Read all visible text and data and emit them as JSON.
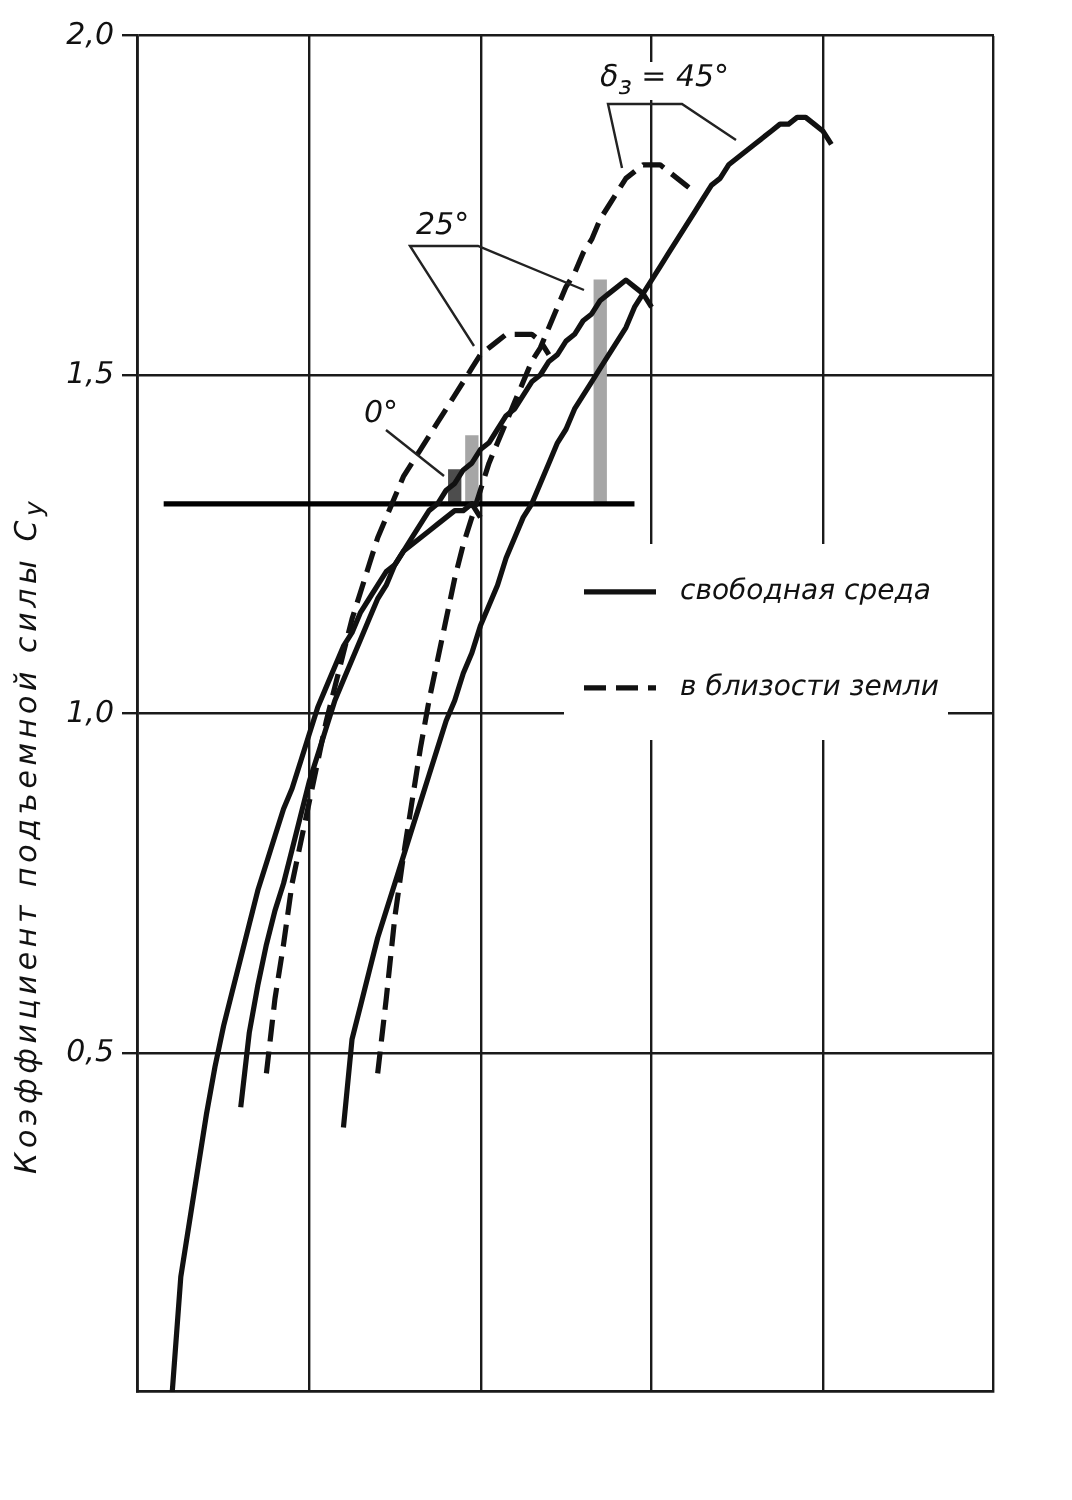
{
  "chart_data": {
    "type": "line",
    "ylabel": "Коэффициент подъемной силы C$_{y}$",
    "annotations": [
      "0°",
      "25°",
      "δ$_{з}$ = 45°"
    ],
    "categories": [
      null,
      null,
      null,
      null,
      null,
      null,
      null,
      null,
      null,
      null,
      null,
      null,
      null,
      null,
      null,
      null,
      null,
      null,
      null,
      null,
      null,
      null,
      null,
      null,
      null,
      null,
      null,
      null,
      null,
      null,
      null,
      null,
      null,
      null,
      null,
      null,
      null,
      null,
      null,
      null,
      null,
      null,
      null,
      null,
      null,
      null,
      null,
      null,
      null,
      null,
      null,
      null,
      null,
      null,
      null,
      null,
      null,
      null,
      null,
      null,
      null,
      null,
      null,
      null,
      null,
      null,
      null,
      null,
      null,
      null,
      null,
      null,
      null,
      null,
      null,
      null,
      null,
      null,
      null,
      null,
      null,
      null,
      null,
      null,
      null,
      null,
      null,
      null,
      null,
      null,
      null,
      null,
      null,
      null,
      null,
      null,
      null,
      null,
      null,
      null,
      null
    ],
    "ylim": [
      0,
      2
    ],
    "yticks": [
      {
        "value": 0.5,
        "label": "0,5"
      },
      {
        "value": 1,
        "label": "1,0"
      },
      {
        "value": 1.5,
        "label": "1,5"
      },
      {
        "value": 2,
        "label": "2,0"
      }
    ],
    "grid": true,
    "legend": "right",
    "tick_labels": "y",
    "marker": "none",
    "series": [
      {
        "name": "свободная среда",
        "color": "#111111",
        "line_style": "solid",
        "values": [
          null,
          null,
          null,
          null,
          0.0,
          0.17,
          0.25,
          0.33,
          0.41,
          0.48,
          0.54,
          0.59,
          0.64,
          0.69,
          0.74,
          0.78,
          0.82,
          0.86,
          0.89,
          0.93,
          0.97,
          1.01,
          1.04,
          1.07,
          1.1,
          1.12,
          1.15,
          1.17,
          1.19,
          1.21,
          1.22,
          1.24,
          1.25,
          1.26,
          1.27,
          1.28,
          1.29,
          1.3,
          1.3,
          1.31,
          1.29,
          null,
          null,
          null,
          null,
          null,
          null,
          null,
          null,
          null,
          null,
          null,
          null,
          null,
          null,
          null,
          null,
          null,
          null,
          null,
          null,
          null,
          null,
          null,
          null,
          null,
          null,
          null,
          null,
          null,
          null,
          null,
          null,
          null,
          null,
          null,
          null,
          null,
          null,
          null,
          null,
          null,
          null,
          null,
          null,
          null,
          null,
          null,
          null,
          null,
          null,
          null,
          null,
          null,
          null,
          null,
          null,
          null,
          null,
          null,
          null
        ]
      },
      {
        "color": "#111111",
        "line_style": "solid",
        "values": [
          null,
          null,
          null,
          null,
          null,
          null,
          null,
          null,
          null,
          null,
          null,
          null,
          0.42,
          0.53,
          0.6,
          0.66,
          0.71,
          0.75,
          0.8,
          0.85,
          0.9,
          0.94,
          0.98,
          1.02,
          1.05,
          1.08,
          1.11,
          1.14,
          1.17,
          1.19,
          1.22,
          1.24,
          1.26,
          1.28,
          1.3,
          1.31,
          1.33,
          1.34,
          1.36,
          1.37,
          1.39,
          1.4,
          1.42,
          1.44,
          1.45,
          1.47,
          1.49,
          1.5,
          1.52,
          1.53,
          1.55,
          1.56,
          1.58,
          1.59,
          1.61,
          1.62,
          1.63,
          1.64,
          1.63,
          1.62,
          1.6,
          null,
          null,
          null,
          null,
          null,
          null,
          null,
          null,
          null,
          null,
          null,
          null,
          null,
          null,
          null,
          null,
          null,
          null,
          null,
          null,
          null,
          null,
          null,
          null,
          null,
          null,
          null,
          null,
          null,
          null,
          null,
          null,
          null,
          null,
          null,
          null,
          null,
          null,
          null,
          null
        ]
      },
      {
        "name": "в близости земли",
        "color": "#111111",
        "line_style": "dashed",
        "values": [
          null,
          null,
          null,
          null,
          null,
          null,
          null,
          null,
          null,
          null,
          null,
          null,
          null,
          null,
          null,
          0.47,
          0.58,
          0.66,
          0.75,
          0.81,
          0.87,
          0.93,
          0.99,
          1.04,
          1.09,
          1.14,
          1.18,
          1.22,
          1.26,
          1.29,
          1.32,
          1.35,
          1.37,
          1.39,
          1.41,
          1.43,
          1.45,
          1.47,
          1.49,
          1.51,
          1.53,
          1.54,
          1.55,
          1.56,
          1.56,
          1.56,
          1.56,
          1.55,
          1.53,
          null,
          null,
          null,
          null,
          null,
          null,
          null,
          null,
          null,
          null,
          null,
          null,
          null,
          null,
          null,
          null,
          null,
          null,
          null,
          null,
          null,
          null,
          null,
          null,
          null,
          null,
          null,
          null,
          null,
          null,
          null,
          null,
          null,
          null,
          null,
          null,
          null,
          null,
          null,
          null,
          null,
          null,
          null,
          null,
          null,
          null,
          null,
          null,
          null,
          null,
          null,
          null
        ]
      },
      {
        "color": "#111111",
        "line_style": "solid",
        "values": [
          null,
          null,
          null,
          null,
          null,
          null,
          null,
          null,
          null,
          null,
          null,
          null,
          null,
          null,
          null,
          null,
          null,
          null,
          null,
          null,
          null,
          null,
          null,
          null,
          0.39,
          0.52,
          0.57,
          0.62,
          0.67,
          0.71,
          0.75,
          0.79,
          0.83,
          0.87,
          0.91,
          0.95,
          0.99,
          1.02,
          1.06,
          1.09,
          1.13,
          1.16,
          1.19,
          1.23,
          1.26,
          1.29,
          1.31,
          1.34,
          1.37,
          1.4,
          1.42,
          1.45,
          1.47,
          1.49,
          1.51,
          1.53,
          1.55,
          1.57,
          1.6,
          1.62,
          1.64,
          1.66,
          1.68,
          1.7,
          1.72,
          1.74,
          1.76,
          1.78,
          1.79,
          1.81,
          1.82,
          1.83,
          1.84,
          1.85,
          1.86,
          1.87,
          1.87,
          1.88,
          1.88,
          1.87,
          1.86,
          1.84,
          null,
          null,
          null,
          null,
          null,
          null,
          null,
          null,
          null,
          null,
          null,
          null,
          null,
          null,
          null,
          null,
          null,
          null,
          null
        ]
      },
      {
        "color": "#111111",
        "line_style": "dashed",
        "values": [
          null,
          null,
          null,
          null,
          null,
          null,
          null,
          null,
          null,
          null,
          null,
          null,
          null,
          null,
          null,
          null,
          null,
          null,
          null,
          null,
          null,
          null,
          null,
          null,
          null,
          null,
          null,
          null,
          0.47,
          0.58,
          0.7,
          0.79,
          0.87,
          0.95,
          1.02,
          1.08,
          1.14,
          1.2,
          1.25,
          1.29,
          1.33,
          1.37,
          1.4,
          1.43,
          1.46,
          1.49,
          1.52,
          1.54,
          1.57,
          1.6,
          1.63,
          1.65,
          1.68,
          1.7,
          1.73,
          1.75,
          1.77,
          1.79,
          1.8,
          1.81,
          1.81,
          1.81,
          1.8,
          1.79,
          1.78,
          1.77,
          null,
          null,
          null,
          null,
          null,
          null,
          null,
          null,
          null,
          null,
          null,
          null,
          null,
          null,
          null,
          null,
          null,
          null,
          null,
          null,
          null,
          null,
          null,
          null,
          null,
          null,
          null,
          null,
          null,
          null,
          null,
          null,
          null,
          null,
          null
        ]
      },
      {
        "color": "#000000",
        "line_style": "solid",
        "values": [
          null,
          null,
          null,
          1.31,
          1.31,
          1.31,
          1.31,
          1.31,
          1.31,
          1.31,
          1.31,
          1.31,
          1.31,
          1.31,
          1.31,
          1.31,
          1.31,
          1.31,
          1.31,
          1.31,
          1.31,
          1.31,
          1.31,
          1.31,
          1.31,
          1.31,
          1.31,
          1.31,
          1.31,
          1.31,
          1.31,
          1.31,
          1.31,
          1.31,
          1.31,
          1.31,
          1.31,
          1.31,
          1.31,
          1.31,
          1.31,
          1.31,
          1.31,
          1.31,
          1.31,
          1.31,
          1.31,
          1.31,
          1.31,
          1.31,
          1.31,
          1.31,
          1.31,
          1.31,
          1.31,
          1.31,
          1.31,
          1.31,
          1.31,
          null,
          null,
          null,
          null,
          null,
          null,
          null,
          null,
          null,
          null,
          null,
          null,
          null,
          null,
          null,
          null,
          null,
          null,
          null,
          null,
          null,
          null,
          null,
          null,
          null,
          null,
          null,
          null,
          null,
          null,
          null,
          null,
          null,
          null,
          null,
          null,
          null,
          null,
          null,
          null,
          null,
          null
        ]
      },
      {
        "type": "bar",
        "color": "#a6a6a6",
        "base": [
          null,
          null,
          null,
          null,
          null,
          null,
          null,
          null,
          null,
          null,
          null,
          null,
          null,
          null,
          null,
          null,
          null,
          null,
          null,
          null,
          null,
          null,
          null,
          null,
          null,
          null,
          null,
          null,
          null,
          null,
          null,
          null,
          null,
          null,
          null,
          null,
          null,
          null,
          null,
          1.31,
          null,
          null,
          null,
          null,
          null,
          null,
          null,
          null,
          null,
          null,
          null,
          null,
          null,
          null,
          1.31,
          null,
          null,
          null,
          null,
          null,
          null,
          null,
          null,
          null,
          null,
          null,
          null,
          null,
          null,
          null,
          null,
          null,
          null,
          null,
          null,
          null,
          null,
          null,
          null,
          null,
          null,
          null,
          null,
          null,
          null,
          null,
          null,
          null,
          null,
          null,
          null,
          null,
          null,
          null,
          null,
          null,
          null,
          null,
          null,
          null,
          null
        ],
        "values": [
          null,
          null,
          null,
          null,
          null,
          null,
          null,
          null,
          null,
          null,
          null,
          null,
          null,
          null,
          null,
          null,
          null,
          null,
          null,
          null,
          null,
          null,
          null,
          null,
          null,
          null,
          null,
          null,
          null,
          null,
          null,
          null,
          null,
          null,
          null,
          null,
          null,
          null,
          null,
          0.1,
          null,
          null,
          null,
          null,
          null,
          null,
          null,
          null,
          null,
          null,
          null,
          null,
          null,
          null,
          0.33,
          null,
          null,
          null,
          null,
          null,
          null,
          null,
          null,
          null,
          null,
          null,
          null,
          null,
          null,
          null,
          null,
          null,
          null,
          null,
          null,
          null,
          null,
          null,
          null,
          null,
          null,
          null,
          null,
          null,
          null,
          null,
          null,
          null,
          null,
          null,
          null,
          null,
          null,
          null,
          null,
          null,
          null,
          null,
          null,
          null,
          null
        ]
      },
      {
        "type": "bar",
        "color": "#4d4d4d",
        "base": [
          null,
          null,
          null,
          null,
          null,
          null,
          null,
          null,
          null,
          null,
          null,
          null,
          null,
          null,
          null,
          null,
          null,
          null,
          null,
          null,
          null,
          null,
          null,
          null,
          null,
          null,
          null,
          null,
          null,
          null,
          null,
          null,
          null,
          null,
          null,
          null,
          null,
          1.31,
          null,
          null,
          null,
          null,
          null,
          null,
          null,
          null,
          null,
          null,
          null,
          null,
          null,
          null,
          null,
          null,
          null,
          null,
          null,
          null,
          null,
          null,
          null,
          null,
          null,
          null,
          null,
          null,
          null,
          null,
          null,
          null,
          null,
          null,
          null,
          null,
          null,
          null,
          null,
          null,
          null,
          null,
          null,
          null,
          null,
          null,
          null,
          null,
          null,
          null,
          null,
          null,
          null,
          null,
          null,
          null,
          null,
          null,
          null,
          null,
          null,
          null,
          null
        ],
        "values": [
          null,
          null,
          null,
          null,
          null,
          null,
          null,
          null,
          null,
          null,
          null,
          null,
          null,
          null,
          null,
          null,
          null,
          null,
          null,
          null,
          null,
          null,
          null,
          null,
          null,
          null,
          null,
          null,
          null,
          null,
          null,
          null,
          null,
          null,
          null,
          null,
          null,
          0.05,
          null,
          null,
          null,
          null,
          null,
          null,
          null,
          null,
          null,
          null,
          null,
          null,
          null,
          null,
          null,
          null,
          null,
          null,
          null,
          null,
          null,
          null,
          null,
          null,
          null,
          null,
          null,
          null,
          null,
          null,
          null,
          null,
          null,
          null,
          null,
          null,
          null,
          null,
          null,
          null,
          null,
          null,
          null,
          null,
          null,
          null,
          null,
          null,
          null,
          null,
          null,
          null,
          null,
          null,
          null,
          null,
          null,
          null,
          null,
          null,
          null,
          null,
          null
        ]
      }
    ]
  }
}
